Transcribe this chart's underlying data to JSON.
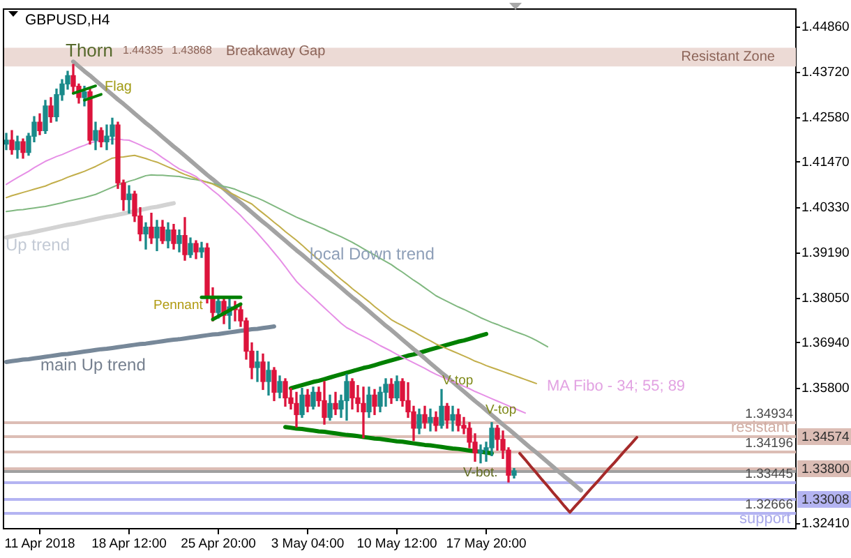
{
  "chart_data": {
    "type": "candlestick",
    "title": "GBPUSD,H4",
    "categories": [
      null,
      null,
      null,
      null,
      null,
      null,
      "11 Apr 2018",
      null,
      null,
      null,
      null,
      null,
      null,
      null,
      null,
      null,
      null,
      null,
      null,
      null,
      null,
      null,
      "18 Apr 12:00",
      null,
      null,
      null,
      null,
      null,
      null,
      null,
      null,
      null,
      null,
      null,
      null,
      null,
      null,
      null,
      "25 Apr 20:00",
      null,
      null,
      null,
      null,
      null,
      null,
      null,
      null,
      null,
      null,
      null,
      null,
      null,
      null,
      null,
      "3 May 04:00",
      null,
      null,
      null,
      null,
      null,
      null,
      null,
      null,
      null,
      null,
      null,
      null,
      null,
      null,
      null,
      "10 May 12:00",
      null,
      null,
      null,
      null,
      null,
      null,
      null,
      null,
      null,
      null,
      null,
      null,
      null,
      null,
      null,
      "17 May 20:00",
      null,
      null,
      null,
      null,
      null,
      null,
      null,
      null,
      null,
      null,
      null,
      null,
      null,
      null,
      null,
      null,
      null,
      null,
      null,
      null,
      null,
      null,
      null,
      null,
      null,
      null,
      null,
      null,
      null,
      null,
      null,
      null,
      null,
      null,
      null,
      null,
      null,
      null,
      null,
      null,
      null,
      null,
      null,
      null,
      null,
      null,
      null,
      null,
      null,
      null,
      null,
      null,
      null,
      null,
      null
    ],
    "ohlc": [
      [
        1.4192,
        1.4219,
        1.4178,
        1.4202
      ],
      [
        1.4202,
        1.4226,
        1.4167,
        1.4178
      ],
      [
        1.4178,
        1.4212,
        1.4157,
        1.4198
      ],
      [
        1.4198,
        1.4205,
        1.4157,
        1.4171
      ],
      [
        1.4171,
        1.4219,
        1.4164,
        1.4212
      ],
      [
        1.4212,
        1.4261,
        1.4198,
        1.4247
      ],
      [
        1.4247,
        1.4268,
        1.4216,
        1.4226
      ],
      [
        1.4226,
        1.4302,
        1.4219,
        1.4288
      ],
      [
        1.4288,
        1.4309,
        1.4247,
        1.4261
      ],
      [
        1.4261,
        1.433,
        1.425,
        1.4316
      ],
      [
        1.4316,
        1.4354,
        1.4302,
        1.4343
      ],
      [
        1.4343,
        1.4375,
        1.433,
        1.4364
      ],
      [
        1.4364,
        1.4392,
        1.4319,
        1.4337
      ],
      [
        1.4337,
        1.4343,
        1.4295,
        1.4309
      ],
      [
        1.4309,
        1.4337,
        1.4288,
        1.4323
      ],
      [
        1.4323,
        1.433,
        1.4192,
        1.4202
      ],
      [
        1.4202,
        1.4247,
        1.4178,
        1.4226
      ],
      [
        1.4226,
        1.4233,
        1.4185,
        1.4198
      ],
      [
        1.4198,
        1.424,
        1.4178,
        1.4212
      ],
      [
        1.4212,
        1.4257,
        1.4192,
        1.424
      ],
      [
        1.424,
        1.4247,
        1.4081,
        1.4095
      ],
      [
        1.4095,
        1.4102,
        1.4026,
        1.4053
      ],
      [
        1.4053,
        1.4088,
        1.4019,
        1.4067
      ],
      [
        1.4067,
        1.4074,
        1.3998,
        1.4012
      ],
      [
        1.4012,
        1.4033,
        1.395,
        1.3967
      ],
      [
        1.3967,
        1.3995,
        1.3929,
        1.3984
      ],
      [
        1.3984,
        1.4019,
        1.3943,
        1.3957
      ],
      [
        1.3957,
        1.4001,
        1.3925,
        1.3984
      ],
      [
        1.3984,
        1.4001,
        1.3943,
        1.395
      ],
      [
        1.395,
        1.3995,
        1.3932,
        1.3977
      ],
      [
        1.3977,
        1.3991,
        1.3929,
        1.3943
      ],
      [
        1.3943,
        1.3977,
        1.3922,
        1.3963
      ],
      [
        1.3963,
        1.4008,
        1.3901,
        1.3915
      ],
      [
        1.3915,
        1.3957,
        1.3908,
        1.3943
      ],
      [
        1.3943,
        1.395,
        1.3905,
        1.3922
      ],
      [
        1.3922,
        1.3946,
        1.3908,
        1.3932
      ],
      [
        1.3932,
        1.3943,
        1.3794,
        1.3811
      ],
      [
        1.3811,
        1.3832,
        1.3749,
        1.377
      ],
      [
        1.377,
        1.3811,
        1.3756,
        1.3798
      ],
      [
        1.3798,
        1.3808,
        1.3742,
        1.3763
      ],
      [
        1.3763,
        1.3805,
        1.3729,
        1.3784
      ],
      [
        1.3784,
        1.3798,
        1.3749,
        1.3777
      ],
      [
        1.3777,
        1.3791,
        1.3735,
        1.3749
      ],
      [
        1.3749,
        1.3756,
        1.3653,
        1.3673
      ],
      [
        1.3673,
        1.3694,
        1.3604,
        1.3632
      ],
      [
        1.3632,
        1.3673,
        1.3597,
        1.3646
      ],
      [
        1.3646,
        1.3666,
        1.3577,
        1.3597
      ],
      [
        1.3597,
        1.3646,
        1.3563,
        1.3625
      ],
      [
        1.3625,
        1.3632,
        1.3549,
        1.357
      ],
      [
        1.357,
        1.3611,
        1.3556,
        1.3597
      ],
      [
        1.3597,
        1.3604,
        1.3535,
        1.3556
      ],
      [
        1.3556,
        1.358,
        1.3528,
        1.3542
      ],
      [
        1.3542,
        1.357,
        1.3483,
        1.3514
      ],
      [
        1.3514,
        1.358,
        1.3507,
        1.3563
      ],
      [
        1.3563,
        1.3577,
        1.3521,
        1.3535
      ],
      [
        1.3535,
        1.3583,
        1.3528,
        1.357
      ],
      [
        1.357,
        1.3583,
        1.3535,
        1.3549
      ],
      [
        1.3549,
        1.3597,
        1.349,
        1.3507
      ],
      [
        1.3507,
        1.3563,
        1.35,
        1.3542
      ],
      [
        1.3542,
        1.357,
        1.3514,
        1.3528
      ],
      [
        1.3528,
        1.3563,
        1.3507,
        1.3549
      ],
      [
        1.3549,
        1.3615,
        1.35,
        1.3597
      ],
      [
        1.3597,
        1.3604,
        1.3528,
        1.3556
      ],
      [
        1.3556,
        1.3587,
        1.3521,
        1.3542
      ],
      [
        1.3542,
        1.3583,
        1.3456,
        1.3521
      ],
      [
        1.3521,
        1.3583,
        1.3507,
        1.3563
      ],
      [
        1.3563,
        1.3577,
        1.3514,
        1.3535
      ],
      [
        1.3535,
        1.3583,
        1.3521,
        1.357
      ],
      [
        1.357,
        1.3604,
        1.3535,
        1.359
      ],
      [
        1.359,
        1.3604,
        1.3542,
        1.3556
      ],
      [
        1.3556,
        1.3611,
        1.3549,
        1.3597
      ],
      [
        1.3597,
        1.3604,
        1.3535,
        1.3549
      ],
      [
        1.3549,
        1.3594,
        1.3507,
        1.3521
      ],
      [
        1.3521,
        1.3535,
        1.3449,
        1.348
      ],
      [
        1.348,
        1.3528,
        1.3466,
        1.3514
      ],
      [
        1.3514,
        1.3535,
        1.348,
        1.3494
      ],
      [
        1.3494,
        1.3528,
        1.3473,
        1.3507
      ],
      [
        1.3507,
        1.3521,
        1.3473,
        1.3487
      ],
      [
        1.3487,
        1.3577,
        1.348,
        1.3535
      ],
      [
        1.3535,
        1.3542,
        1.348,
        1.35
      ],
      [
        1.35,
        1.3535,
        1.3473,
        1.3514
      ],
      [
        1.3514,
        1.3528,
        1.3473,
        1.3487
      ],
      [
        1.3487,
        1.3507,
        1.3466,
        1.348
      ],
      [
        1.348,
        1.3494,
        1.3431,
        1.3445
      ],
      [
        1.3445,
        1.3466,
        1.3397,
        1.3418
      ],
      [
        1.3418,
        1.3438,
        1.3393,
        1.3425
      ],
      [
        1.3425,
        1.3445,
        1.3397,
        1.3431
      ],
      [
        1.3431,
        1.3494,
        1.3411,
        1.348
      ],
      [
        1.348,
        1.3487,
        1.3425,
        1.3452
      ],
      [
        1.3452,
        1.3473,
        1.3404,
        1.3425
      ],
      [
        1.3425,
        1.3431,
        1.3345,
        1.3362
      ],
      [
        1.3362,
        1.3379,
        1.3355,
        1.3373
      ],
      null,
      null,
      null,
      null,
      null,
      null,
      null,
      null,
      null,
      null,
      null,
      null,
      null,
      null,
      null,
      null,
      null,
      null,
      null,
      null,
      null,
      null,
      null,
      null,
      null,
      null,
      null,
      null,
      null,
      null,
      null,
      null,
      null,
      null,
      null,
      null,
      null,
      null,
      null,
      null,
      null,
      null,
      null,
      null,
      null,
      null,
      null,
      null,
      null,
      null
    ],
    "colors": [
      "#1a8a8a",
      "#dc143c",
      "#1a8a8a",
      "#dc143c",
      "#1a8a8a",
      "#1a8a8a",
      "#dc143c",
      "#1a8a8a",
      "#dc143c",
      "#1a8a8a",
      "#1a8a8a",
      "#1a8a8a",
      "#dc143c",
      "#dc143c",
      "#1a8a8a",
      "#dc143c",
      "#1a8a8a",
      "#dc143c",
      "#1a8a8a",
      "#1a8a8a",
      "#dc143c",
      "#dc143c",
      "#1a8a8a",
      "#dc143c",
      "#dc143c",
      "#1a8a8a",
      "#dc143c",
      "#1a8a8a",
      "#dc143c",
      "#1a8a8a",
      "#dc143c",
      "#1a8a8a",
      "#dc143c",
      "#1a8a8a",
      "#dc143c",
      "#1a8a8a",
      "#dc143c",
      "#dc143c",
      "#1a8a8a",
      "#dc143c",
      "#1a8a8a",
      "#dc143c",
      "#dc143c",
      "#dc143c",
      "#dc143c",
      "#1a8a8a",
      "#dc143c",
      "#1a8a8a",
      "#dc143c",
      "#1a8a8a",
      "#dc143c",
      "#dc143c",
      "#dc143c",
      "#1a8a8a",
      "#dc143c",
      "#1a8a8a",
      "#dc143c",
      "#dc143c",
      "#1a8a8a",
      "#dc143c",
      "#1a8a8a",
      "#1a8a8a",
      "#dc143c",
      "#dc143c",
      "#dc143c",
      "#1a8a8a",
      "#dc143c",
      "#1a8a8a",
      "#1a8a8a",
      "#dc143c",
      "#1a8a8a",
      "#dc143c",
      "#dc143c",
      "#dc143c",
      "#1a8a8a",
      "#dc143c",
      "#1a8a8a",
      "#dc143c",
      "#1a8a8a",
      "#dc143c",
      "#1a8a8a",
      "#dc143c",
      "#dc143c",
      "#dc143c",
      "#dc143c",
      "#1a8a8a",
      "#1a8a8a",
      "#1a8a8a",
      "#dc143c",
      "#dc143c",
      "#dc143c",
      "#1a8a8a",
      null,
      null,
      null,
      null,
      null,
      null,
      null,
      null,
      null,
      null,
      null,
      null,
      null,
      null,
      null,
      null,
      null,
      null,
      null,
      null,
      null,
      null,
      null,
      null,
      null,
      null,
      null,
      null,
      null,
      null,
      null,
      null,
      null,
      null,
      null,
      null,
      null,
      null,
      null,
      null,
      null,
      null,
      null,
      null,
      null,
      null,
      null,
      null,
      null,
      null
    ],
    "series": [
      {
        "type": "line",
        "color": "#e68fe6",
        "values": [
          1.4091,
          1.41,
          1.4108,
          1.4116,
          1.4124,
          1.4133,
          1.4141,
          1.4149,
          1.4155,
          1.4161,
          1.4166,
          1.4172,
          1.4178,
          1.4184,
          1.4189,
          1.4195,
          1.4199,
          1.4201,
          1.4203,
          1.4204,
          1.4205,
          1.4203,
          1.4202,
          1.4196,
          1.419,
          1.4183,
          1.4177,
          1.4168,
          1.4158,
          1.4149,
          1.4139,
          1.413,
          1.4124,
          1.4118,
          1.4111,
          1.4099,
          1.4088,
          1.4076,
          1.4065,
          1.4052,
          1.4039,
          1.4026,
          1.4013,
          1.3998,
          1.3984,
          1.3969,
          1.3953,
          1.3937,
          1.392,
          1.3903,
          1.3885,
          1.3866,
          1.3848,
          1.3834,
          1.3821,
          1.3808,
          1.3795,
          1.3782,
          1.3769,
          1.3756,
          1.3743,
          1.3732,
          1.3725,
          1.3717,
          1.371,
          1.3703,
          1.3695,
          1.3687,
          1.368,
          1.3673,
          1.3665,
          1.3658,
          1.3651,
          1.3644,
          1.3637,
          1.363,
          1.3622,
          1.3615,
          1.3609,
          1.3603,
          1.3597,
          1.3591,
          1.3585,
          1.3579,
          1.3572,
          1.3566,
          1.356,
          1.3554,
          1.3548,
          1.3542,
          1.3536,
          1.353,
          1.3524,
          1.3518,
          null,
          null,
          null,
          null,
          null,
          null,
          null,
          null,
          null,
          null,
          null,
          null,
          null,
          null,
          null,
          null,
          null,
          null,
          null,
          null,
          null,
          null,
          null,
          null,
          null,
          null,
          null,
          null,
          null,
          null,
          null,
          null,
          null,
          null,
          null,
          null,
          null,
          null,
          null,
          null,
          null,
          null,
          null,
          null,
          null,
          null,
          null,
          null
        ]
      },
      {
        "type": "line",
        "color": "#c2ae4a",
        "values": [
          1.4058,
          1.4063,
          1.4067,
          1.4071,
          1.4075,
          1.4079,
          1.4083,
          1.4087,
          1.4093,
          1.4098,
          1.4103,
          1.4109,
          1.4114,
          1.4119,
          1.4124,
          1.413,
          1.4136,
          1.4143,
          1.415,
          1.4157,
          1.4159,
          1.416,
          1.4162,
          1.4164,
          1.416,
          1.4156,
          1.4151,
          1.4147,
          1.4141,
          1.4135,
          1.4129,
          1.4122,
          1.4116,
          1.4111,
          1.4106,
          1.4101,
          1.4096,
          1.4092,
          1.4085,
          1.4078,
          1.4071,
          1.4064,
          1.4056,
          1.4049,
          1.4042,
          1.403,
          1.4019,
          1.4008,
          1.3996,
          1.3985,
          1.3973,
          1.3962,
          1.3951,
          1.3939,
          1.3926,
          1.3914,
          1.3902,
          1.389,
          1.3878,
          1.3865,
          1.3853,
          1.3842,
          1.383,
          1.3819,
          1.3808,
          1.3797,
          1.3785,
          1.3774,
          1.3763,
          1.3752,
          1.3744,
          1.3737,
          1.3729,
          1.3722,
          1.3714,
          1.3706,
          1.3699,
          1.3691,
          1.3685,
          1.3679,
          1.3673,
          1.3667,
          1.3661,
          1.3655,
          1.3648,
          1.3643,
          1.3637,
          1.3632,
          1.3627,
          1.3622,
          1.3617,
          1.3612,
          1.3607,
          1.3602,
          1.3597,
          1.3592,
          null,
          null,
          null,
          null,
          null,
          null,
          null,
          null,
          null,
          null,
          null,
          null,
          null,
          null,
          null,
          null,
          null,
          null,
          null,
          null,
          null,
          null,
          null,
          null,
          null,
          null,
          null,
          null,
          null,
          null,
          null,
          null,
          null,
          null,
          null,
          null,
          null,
          null,
          null,
          null,
          null,
          null,
          null,
          null,
          null,
          null
        ]
      },
      {
        "type": "line",
        "color": "#80b880",
        "values": [
          1.4023,
          1.4025,
          1.4027,
          1.4028,
          1.403,
          1.4032,
          1.4034,
          1.4036,
          1.4039,
          1.4042,
          1.4045,
          1.4049,
          1.4052,
          1.4055,
          1.4058,
          1.4062,
          1.4066,
          1.4072,
          1.4078,
          1.4084,
          1.409,
          1.4094,
          1.4099,
          1.4103,
          1.4108,
          1.4113,
          1.4115,
          1.4114,
          1.4114,
          1.4113,
          1.4112,
          1.4111,
          1.4108,
          1.4105,
          1.4103,
          1.41,
          1.4097,
          1.4093,
          1.409,
          1.4086,
          1.4083,
          1.4079,
          1.4073,
          1.4068,
          1.4062,
          1.4057,
          1.4051,
          1.4044,
          1.4037,
          1.403,
          1.4023,
          1.4016,
          1.4009,
          1.4003,
          1.3997,
          1.3991,
          1.3985,
          1.3979,
          1.3972,
          1.3966,
          1.396,
          1.3953,
          1.3946,
          1.3938,
          1.393,
          1.3922,
          1.3914,
          1.3906,
          1.3898,
          1.389,
          1.388,
          1.3871,
          1.3861,
          1.3851,
          1.3842,
          1.3832,
          1.3822,
          1.3812,
          1.3805,
          1.3798,
          1.3791,
          1.3784,
          1.3778,
          1.3771,
          1.3764,
          1.3757,
          1.3751,
          1.3745,
          1.374,
          1.3734,
          1.3729,
          1.3723,
          1.3718,
          1.3713,
          1.3707,
          1.37,
          1.3692,
          1.3684,
          null,
          null,
          null,
          null,
          null,
          null,
          null,
          null,
          null,
          null,
          null,
          null,
          null,
          null,
          null,
          null,
          null,
          null,
          null,
          null,
          null,
          null,
          null,
          null,
          null,
          null,
          null,
          null,
          null,
          null,
          null,
          null,
          null,
          null,
          null,
          null,
          null,
          null,
          null,
          null,
          null,
          null,
          null,
          null
        ]
      },
      {
        "type": "line",
        "color": "#a3a3a3",
        "values": [
          null,
          null,
          null,
          null,
          null,
          null,
          null,
          null,
          null,
          null,
          null,
          null,
          1.4399,
          1.4387,
          1.4375,
          1.4364,
          1.4352,
          1.434,
          1.4328,
          1.4316,
          1.4304,
          1.4293,
          1.4281,
          1.4269,
          1.4257,
          1.4245,
          1.4234,
          1.4222,
          1.421,
          1.4198,
          1.4186,
          1.4175,
          1.4163,
          1.4151,
          1.4139,
          1.4127,
          1.4115,
          1.4104,
          1.4092,
          1.408,
          1.4068,
          1.4056,
          1.4045,
          1.4033,
          1.4021,
          1.4009,
          1.3997,
          1.3986,
          1.3974,
          1.3962,
          1.395,
          1.3938,
          1.3926,
          1.3915,
          1.3903,
          1.3891,
          1.3879,
          1.3867,
          1.3856,
          1.3844,
          1.3832,
          1.382,
          1.3808,
          1.3797,
          1.3785,
          1.3773,
          1.3761,
          1.3749,
          1.3737,
          1.3726,
          1.3714,
          1.3702,
          1.369,
          1.3678,
          1.3667,
          1.3655,
          1.3643,
          1.3631,
          1.3619,
          1.3608,
          1.3596,
          1.3584,
          1.3572,
          1.356,
          1.3548,
          1.3537,
          1.3525,
          1.3513,
          1.3501,
          1.3489,
          1.3478,
          1.3466,
          1.3454,
          1.3442,
          1.343,
          1.3419,
          1.3407,
          1.3395,
          1.3383,
          1.3371,
          1.3359,
          1.3348,
          1.3336,
          1.3324,
          null,
          null,
          null,
          null,
          null,
          null,
          null,
          null,
          null,
          null,
          null,
          null,
          null,
          null,
          null,
          null,
          null,
          null,
          null,
          null,
          null,
          null,
          null,
          null,
          null,
          null,
          null,
          null,
          null,
          null,
          null,
          null,
          null,
          null,
          null,
          null,
          null,
          null
        ]
      },
      {
        "type": "line",
        "color": "#d3d3d3",
        "values": [
          1.3958,
          1.3961,
          1.3964,
          1.3967,
          1.3969,
          1.3972,
          1.3975,
          1.3978,
          1.3981,
          1.3984,
          1.3987,
          1.399,
          1.3992,
          1.3995,
          1.3998,
          1.4001,
          1.4004,
          1.4007,
          1.401,
          1.4012,
          1.4015,
          1.4018,
          1.4021,
          1.4024,
          1.4027,
          1.403,
          1.4033,
          1.4035,
          1.4038,
          1.4041,
          1.4044,
          null,
          null,
          null,
          null,
          null,
          null,
          null,
          null,
          null,
          null,
          null,
          null,
          null,
          null,
          null,
          null,
          null,
          null,
          null,
          null,
          null,
          null,
          null,
          null,
          null,
          null,
          null,
          null,
          null,
          null,
          null,
          null,
          null,
          null,
          null,
          null,
          null,
          null,
          null,
          null,
          null,
          null,
          null,
          null,
          null,
          null,
          null,
          null,
          null,
          null,
          null,
          null,
          null,
          null,
          null,
          null,
          null,
          null,
          null,
          null,
          null,
          null,
          null,
          null,
          null,
          null,
          null,
          null,
          null,
          null,
          null,
          null,
          null,
          null,
          null,
          null,
          null,
          null,
          null,
          null,
          null,
          null,
          null,
          null,
          null,
          null,
          null,
          null,
          null,
          null,
          null,
          null,
          null,
          null,
          null,
          null,
          null,
          null,
          null,
          null,
          null,
          null,
          null,
          null,
          null,
          null,
          null,
          null,
          null,
          null,
          null
        ]
      },
      {
        "type": "line",
        "color": "#778899",
        "values": [
          1.3646,
          1.3648,
          1.365,
          1.3652,
          1.3653,
          1.3655,
          1.3657,
          1.3659,
          1.3661,
          1.3663,
          1.3665,
          1.3666,
          1.3668,
          1.367,
          1.3672,
          1.3674,
          1.3676,
          1.3678,
          1.3679,
          1.3681,
          1.3683,
          1.3685,
          1.3687,
          1.3689,
          1.3691,
          1.3692,
          1.3694,
          1.3696,
          1.3698,
          1.37,
          1.3702,
          1.3703,
          1.3705,
          1.3707,
          1.3709,
          1.3711,
          1.3713,
          1.3715,
          1.3716,
          1.3718,
          1.372,
          1.3722,
          1.3724,
          1.3726,
          1.3728,
          1.3729,
          1.3731,
          1.3733,
          1.3735,
          null,
          null,
          null,
          null,
          null,
          null,
          null,
          null,
          null,
          null,
          null,
          null,
          null,
          null,
          null,
          null,
          null,
          null,
          null,
          null,
          null,
          null,
          null,
          null,
          null,
          null,
          null,
          null,
          null,
          null,
          null,
          null,
          null,
          null,
          null,
          null,
          null,
          null,
          null,
          null,
          null,
          null,
          null,
          null,
          null,
          null,
          null,
          null,
          null,
          null,
          null,
          null,
          null,
          null,
          null,
          null,
          null,
          null,
          null,
          null,
          null,
          null,
          null,
          null,
          null,
          null,
          null,
          null,
          null,
          null,
          null,
          null,
          null,
          null,
          null,
          null,
          null,
          null,
          null,
          null,
          null,
          null,
          null,
          null,
          null,
          null,
          null,
          null,
          null,
          null,
          null,
          null,
          null
        ]
      },
      {
        "type": "line",
        "color": "#008000",
        "values": [
          null,
          null,
          null,
          null,
          null,
          null,
          null,
          null,
          null,
          null,
          null,
          null,
          null,
          null,
          null,
          null,
          null,
          null,
          null,
          null,
          null,
          null,
          null,
          null,
          null,
          null,
          null,
          null,
          null,
          null,
          null,
          null,
          null,
          null,
          null,
          null,
          null,
          null,
          null,
          null,
          null,
          null,
          null,
          null,
          null,
          null,
          null,
          null,
          null,
          null,
          null,
          1.358,
          1.3584,
          1.3588,
          1.3592,
          1.3596,
          1.3599,
          1.3603,
          1.3607,
          1.3611,
          1.3615,
          1.3619,
          1.3623,
          1.3627,
          1.3631,
          1.3634,
          1.3638,
          1.3642,
          1.3646,
          1.365,
          1.3654,
          1.3658,
          1.3662,
          1.3665,
          1.3669,
          1.3673,
          1.3677,
          1.3681,
          1.3685,
          1.3689,
          1.3693,
          1.3697,
          1.37,
          1.3704,
          1.3708,
          1.3712,
          1.3716,
          null,
          null,
          null,
          null,
          null,
          null,
          null,
          null,
          null,
          null,
          null,
          null,
          null,
          null,
          null,
          null,
          null,
          null,
          null,
          null,
          null,
          null,
          null,
          null,
          null,
          null,
          null,
          null,
          null,
          null,
          null,
          null,
          null,
          null,
          null,
          null,
          null,
          null,
          null,
          null,
          null,
          null,
          null,
          null,
          null,
          null,
          null,
          null,
          null,
          null,
          null,
          null,
          null,
          null,
          null
        ]
      },
      {
        "type": "line",
        "color": "#008000",
        "values": [
          null,
          null,
          null,
          null,
          null,
          null,
          null,
          null,
          null,
          null,
          null,
          null,
          null,
          null,
          null,
          null,
          null,
          null,
          null,
          null,
          null,
          null,
          null,
          null,
          null,
          null,
          null,
          null,
          null,
          null,
          null,
          null,
          null,
          null,
          null,
          null,
          null,
          null,
          null,
          null,
          null,
          null,
          null,
          null,
          null,
          null,
          null,
          null,
          null,
          null,
          1.3483,
          1.3481,
          1.3479,
          1.3478,
          1.3476,
          1.3474,
          1.3472,
          1.3471,
          1.3469,
          1.3467,
          1.3465,
          1.3463,
          1.3462,
          1.346,
          1.3458,
          1.3456,
          1.3454,
          1.3453,
          1.3451,
          1.3449,
          1.3447,
          1.3446,
          1.3444,
          1.3442,
          1.344,
          1.3438,
          1.3437,
          1.3435,
          1.3433,
          1.3431,
          1.3429,
          1.3428,
          1.3426,
          1.3424,
          1.3422,
          1.3421,
          1.3419,
          1.3417,
          null,
          null,
          null,
          null,
          null,
          null,
          null,
          null,
          null,
          null,
          null,
          null,
          null,
          null,
          null,
          null,
          null,
          null,
          null,
          null,
          null,
          null,
          null,
          null,
          null,
          null,
          null,
          null,
          null,
          null,
          null,
          null,
          null,
          null,
          null,
          null,
          null,
          null,
          null,
          null,
          null,
          null,
          null,
          null,
          null,
          null,
          null,
          null,
          null,
          null,
          null,
          null,
          null,
          null
        ]
      },
      {
        "type": "line",
        "color": "#a52a2a",
        "values": [
          null,
          null,
          null,
          null,
          null,
          null,
          null,
          null,
          null,
          null,
          null,
          null,
          null,
          null,
          null,
          null,
          null,
          null,
          null,
          null,
          null,
          null,
          null,
          null,
          null,
          null,
          null,
          null,
          null,
          null,
          null,
          null,
          null,
          null,
          null,
          null,
          null,
          null,
          null,
          null,
          null,
          null,
          null,
          null,
          null,
          null,
          null,
          null,
          null,
          null,
          null,
          null,
          null,
          null,
          null,
          null,
          null,
          null,
          null,
          null,
          null,
          null,
          null,
          null,
          null,
          null,
          null,
          null,
          null,
          null,
          null,
          null,
          null,
          null,
          null,
          null,
          null,
          null,
          null,
          null,
          null,
          null,
          null,
          null,
          null,
          null,
          null,
          null,
          null,
          null,
          null,
          null,
          1.3417,
          1.3401,
          1.3384,
          1.3368,
          1.3351,
          1.3335,
          1.3318,
          1.3302,
          1.3285,
          1.3269,
          1.3285,
          1.33,
          1.3316,
          1.3332,
          1.3347,
          1.3363,
          1.3379,
          1.3394,
          1.341,
          1.3426,
          1.3441,
          1.3457,
          null,
          null,
          null,
          null,
          null,
          null,
          null,
          null,
          null,
          null,
          null,
          null,
          null,
          null,
          null,
          null,
          null,
          null,
          null,
          null,
          null,
          null,
          null,
          null,
          null,
          null,
          null,
          null
        ]
      }
    ],
    "ylim": [
      1.3228,
      1.453
    ],
    "yticks": [
      {
        "value": 1.4486,
        "label": "1.44860"
      },
      {
        "value": 1.4372,
        "label": "1.43720"
      },
      {
        "value": 1.4258,
        "label": "1.42580"
      },
      {
        "value": 1.4147,
        "label": "1.41470"
      },
      {
        "value": 1.4033,
        "label": "1.40330"
      },
      {
        "value": 1.3919,
        "label": "1.39190"
      },
      {
        "value": 1.3805,
        "label": "1.38050"
      },
      {
        "value": 1.3694,
        "label": "1.36940"
      },
      {
        "value": 1.358,
        "label": "1.35800"
      },
      {
        "value": 1.3241,
        "label": "1.32410"
      }
    ],
    "bands": [
      {
        "axis": "y",
        "from": 1.43868,
        "to": 1.44335,
        "label": "Resistant Zone",
        "color": "#ecdad5"
      }
    ],
    "ref_lines": [
      {
        "axis": "y",
        "value": 1.34934,
        "label": "1.34934",
        "color": "#dcbdb5"
      },
      {
        "axis": "y",
        "value": 1.34574,
        "label": "1.34574",
        "color": "#dcbdb5"
      },
      {
        "axis": "y",
        "value": 1.34196,
        "label": "1.34196",
        "color": "#dcbdb5"
      },
      {
        "axis": "y",
        "value": 1.338,
        "label": "1.33800",
        "color": "#dcbdb5"
      },
      {
        "axis": "y",
        "value": 1.33445,
        "label": "1.33445",
        "color": "#b4b4f2"
      },
      {
        "axis": "y",
        "value": 1.33008,
        "label": "1.33008",
        "color": "#b4b4f2"
      },
      {
        "axis": "y",
        "value": 1.32666,
        "label": "1.32666",
        "color": "#b4b4f2"
      },
      {
        "axis": "y",
        "value": 1.337,
        "color": "#a0a0a0"
      }
    ],
    "annotations": [
      "Thorn",
      "Flag",
      "Up trend",
      "local Down trend",
      "Pennant",
      "main Up trend",
      "V-top",
      "V-top",
      "V-bot.",
      "MA Fibo - 34; 55; 89",
      "Breakaway Gap",
      "1.44335",
      "1.43868",
      "resistant",
      "support"
    ]
  }
}
